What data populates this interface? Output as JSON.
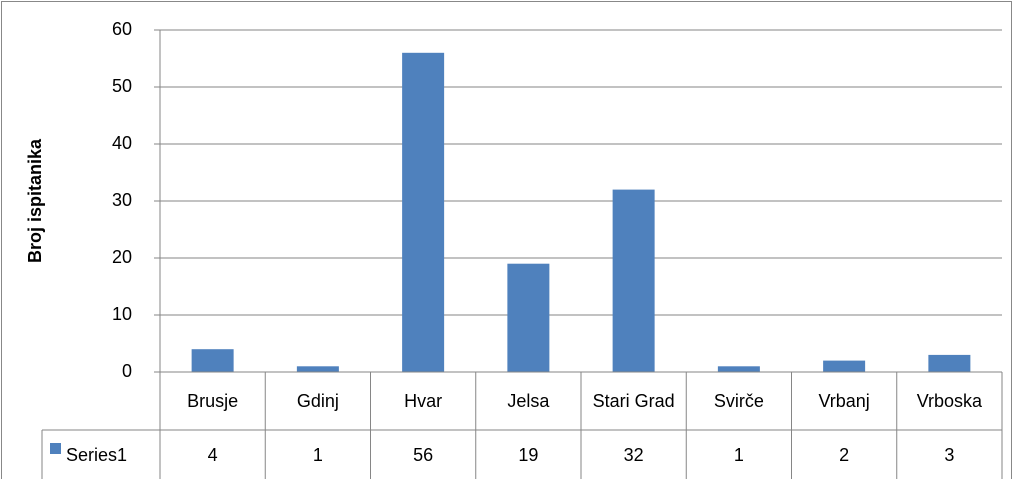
{
  "chart_data": {
    "type": "bar",
    "y_label": "Broj ispitanika",
    "categories": [
      "Brusje",
      "Gdinj",
      "Hvar",
      "Jelsa",
      "Stari Grad",
      "Svirče",
      "Vrbanj",
      "Vrboska"
    ],
    "series": [
      {
        "name": "Series1",
        "color": "#4f81bd",
        "values": [
          4,
          1,
          56,
          19,
          32,
          1,
          2,
          3
        ]
      }
    ],
    "ylim": [
      0,
      60
    ],
    "yticks": [
      0,
      10,
      20,
      30,
      40,
      50,
      60
    ],
    "grid": true,
    "data_table": true
  }
}
